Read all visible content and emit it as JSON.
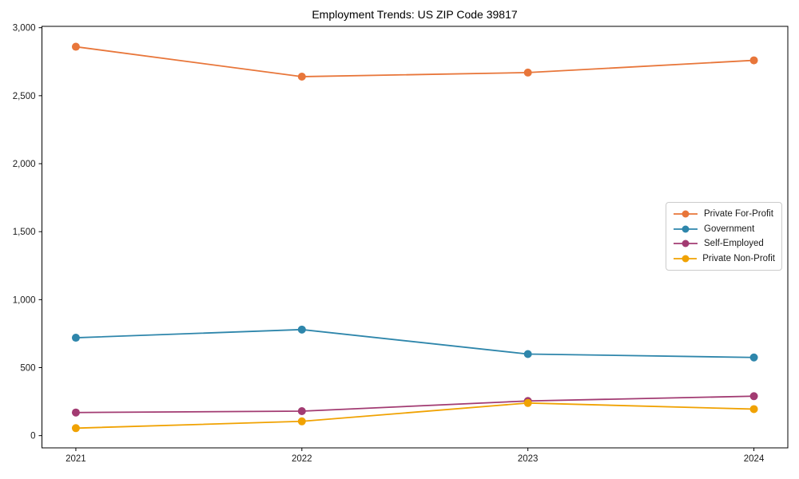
{
  "chart_data": {
    "type": "line",
    "title": "Employment Trends: US ZIP Code 39817",
    "xlabel": "",
    "ylabel": "",
    "x_categories": [
      "2021",
      "2022",
      "2023",
      "2024"
    ],
    "series": [
      {
        "name": "Private For-Profit",
        "color": "#E8763A",
        "values": [
          2860,
          2640,
          2670,
          2760
        ]
      },
      {
        "name": "Government",
        "color": "#2E86AB",
        "values": [
          720,
          780,
          600,
          575
        ]
      },
      {
        "name": "Self-Employed",
        "color": "#A23B72",
        "values": [
          170,
          180,
          255,
          290
        ]
      },
      {
        "name": "Private Non-Profit",
        "color": "#F0A202",
        "values": [
          55,
          105,
          240,
          195
        ]
      }
    ],
    "yticks": [
      {
        "value": 0,
        "label": "0"
      },
      {
        "value": 500,
        "label": "500"
      },
      {
        "value": 1000,
        "label": "1,000"
      },
      {
        "value": 1500,
        "label": "1,500"
      },
      {
        "value": 2000,
        "label": "2,000"
      },
      {
        "value": 2500,
        "label": "2,500"
      },
      {
        "value": 3000,
        "label": "3,000"
      }
    ],
    "ylim": [
      -90,
      3010
    ],
    "grid": false,
    "marker": "circle",
    "legend_position": "center right",
    "axis_color": "#000000",
    "text_color": "#1a1a1a"
  }
}
